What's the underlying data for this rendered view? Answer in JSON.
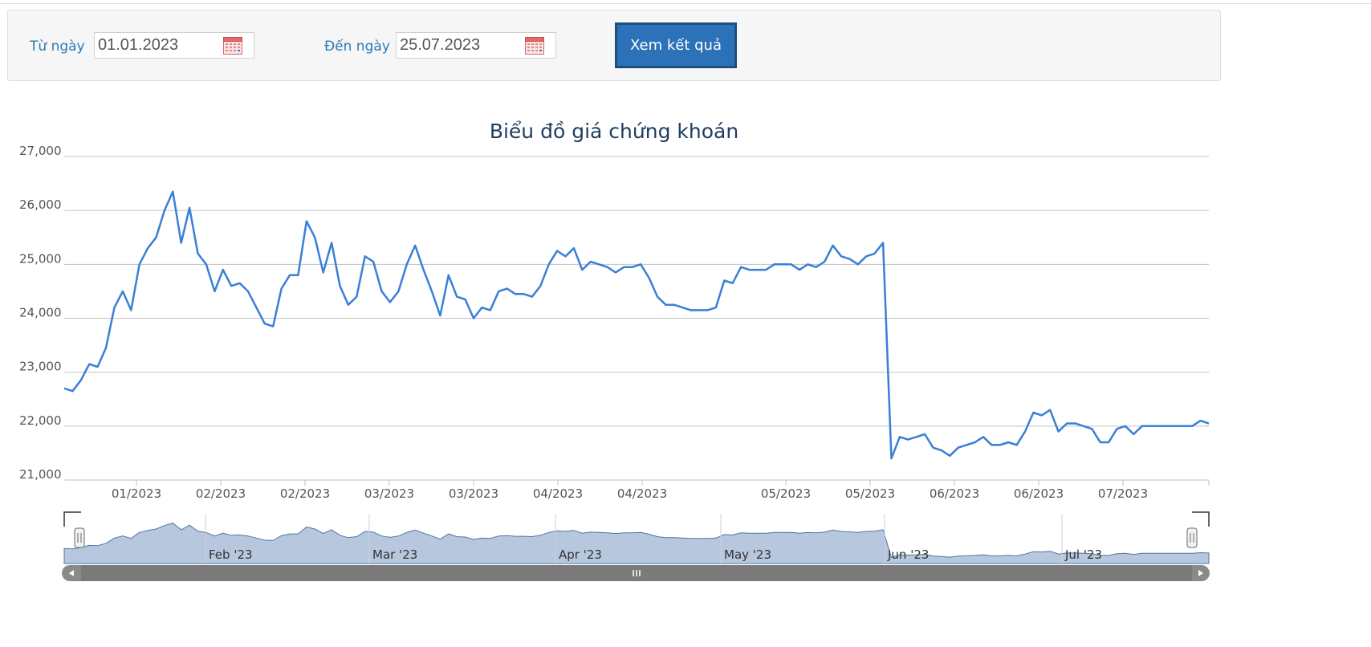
{
  "filter": {
    "from_label": "Từ ngày",
    "from_value": "01.01.2023",
    "to_label": "Đến ngày",
    "to_value": "25.07.2023",
    "submit_label": "Xem kết quả"
  },
  "chart_data": {
    "type": "line",
    "title": "Biểu đồ giá chứng khoán",
    "xlabel": "",
    "ylabel": "",
    "ylim": [
      21000,
      27000
    ],
    "yticks": [
      "27,000",
      "26,000",
      "25,000",
      "24,000",
      "23,000",
      "22,000",
      "21,000"
    ],
    "xticks": [
      "01/2023",
      "02/2023",
      "02/2023",
      "03/2023",
      "03/2023",
      "04/2023",
      "04/2023",
      "05/2023",
      "05/2023",
      "06/2023",
      "06/2023",
      "07/2023"
    ],
    "grid": true,
    "line_color": "#3a7fd6",
    "series": [
      {
        "values": [
          22700,
          22650,
          22850,
          23150,
          23100,
          23450,
          24200,
          24500,
          24150,
          25000,
          25300,
          25500,
          26000,
          26350,
          25400,
          26050,
          25200,
          25000,
          24500,
          24900,
          24600,
          24650,
          24500,
          24200,
          23900,
          23850,
          24550,
          24800,
          24800,
          25800,
          25500,
          24850,
          25400,
          24600,
          24250,
          24400,
          25150,
          25050,
          24500,
          24300,
          24500,
          25000,
          25350,
          24900,
          24500,
          24050,
          24800,
          24400,
          24350,
          24000,
          24200,
          24150,
          24500,
          24550,
          24450,
          24450,
          24400,
          24600,
          25000,
          25250,
          25150,
          25300,
          24900,
          25050,
          25000,
          24950,
          24850,
          24950,
          24950,
          25000,
          24750,
          24400,
          24250,
          24250,
          24200,
          24150,
          24150,
          24150,
          24200,
          24700,
          24650,
          24950,
          24900,
          24900,
          24900,
          25000,
          25000,
          25000,
          24900,
          25000,
          24950,
          25050,
          25350,
          25150,
          25100,
          25000,
          25150,
          25200,
          25400,
          21400,
          21800,
          21750,
          21800,
          21850,
          21600,
          21550,
          21450,
          21600,
          21650,
          21700,
          21800,
          21650,
          21650,
          21700,
          21650,
          21900,
          22250,
          22200,
          22300,
          21900,
          22050,
          22050,
          22000,
          21950,
          21700,
          21700,
          21950,
          22000,
          21850,
          22000,
          22000,
          22000,
          22000,
          22000,
          22000,
          22000,
          22100,
          22050
        ]
      }
    ],
    "navigator": {
      "labels": [
        "Feb '23",
        "Mar '23",
        "Apr '23",
        "May '23",
        "Jun '23",
        "Jul '23"
      ],
      "fill_color": "#b7c7de",
      "line_color": "#4f76a8"
    }
  }
}
